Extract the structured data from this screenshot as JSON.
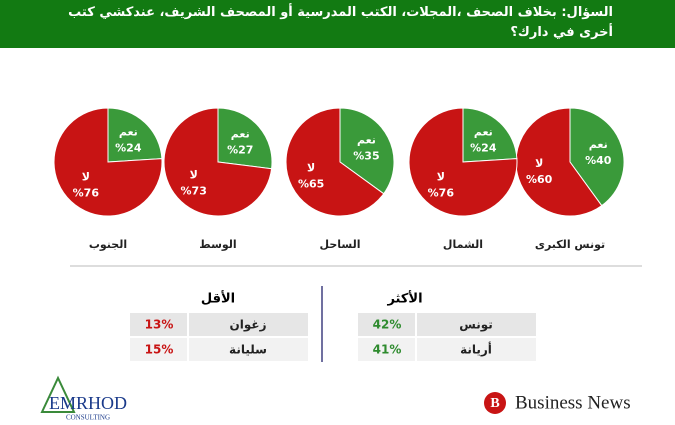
{
  "header": {
    "title": [
      "السؤال: بخلاف الصحف ،المجلات،  الكتب المدرسية أو المصحف الشريف، عندكشي كتب",
      "أخرى في دارك؟"
    ]
  },
  "chart_data": [
    {
      "type": "pie",
      "title": "تونس الكبرى",
      "categories": [
        "نعم",
        "لا"
      ],
      "values": [
        40,
        60
      ],
      "value_labels": [
        "%40",
        "%60"
      ],
      "colors": [
        "#3a9a3a",
        "#c81414"
      ]
    },
    {
      "type": "pie",
      "title": "الشمال",
      "categories": [
        "نعم",
        "لا"
      ],
      "values": [
        24,
        76
      ],
      "value_labels": [
        "%24",
        "%76"
      ],
      "colors": [
        "#3a9a3a",
        "#c81414"
      ]
    },
    {
      "type": "pie",
      "title": "الساحل",
      "categories": [
        "نعم",
        "لا"
      ],
      "values": [
        35,
        65
      ],
      "value_labels": [
        "%35",
        "%65"
      ],
      "colors": [
        "#3a9a3a",
        "#c81414"
      ]
    },
    {
      "type": "pie",
      "title": "الوسط",
      "categories": [
        "نعم",
        "لا"
      ],
      "values": [
        27,
        73
      ],
      "value_labels": [
        "%27",
        "%73"
      ],
      "colors": [
        "#3a9a3a",
        "#c81414"
      ]
    },
    {
      "type": "pie",
      "title": "الجنوب",
      "categories": [
        "نعم",
        "لا"
      ],
      "values": [
        24,
        76
      ],
      "value_labels": [
        "%24",
        "%76"
      ],
      "colors": [
        "#3a9a3a",
        "#c81414"
      ]
    }
  ],
  "tables": [
    {
      "title": "الأكثر",
      "rows": [
        [
          "تونس",
          "42%"
        ],
        [
          "أريانة",
          "41%"
        ]
      ]
    },
    {
      "title": "الأقل",
      "rows": [
        [
          "زغوان",
          "13%"
        ],
        [
          "سليانة",
          "15%"
        ]
      ]
    }
  ],
  "logos": {
    "left": [
      "EMRHOD",
      "CONSULTING"
    ],
    "right": "Business News"
  }
}
